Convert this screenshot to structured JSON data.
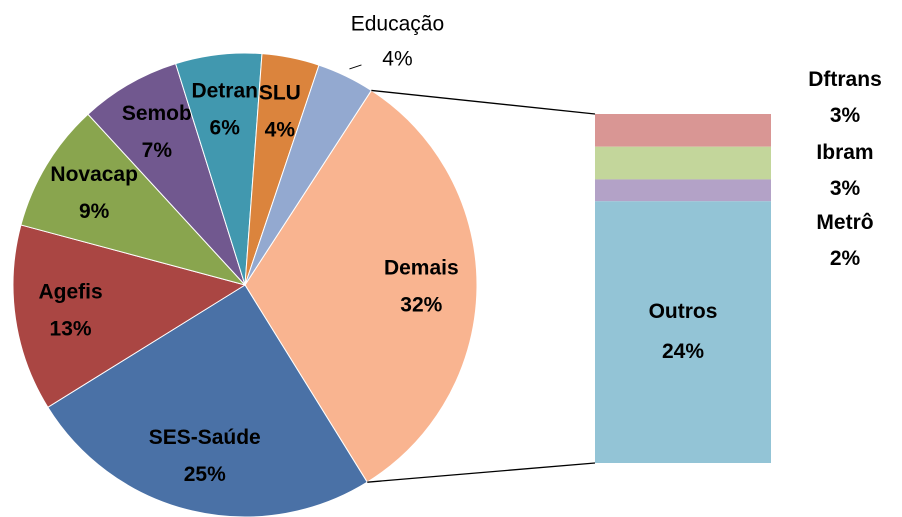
{
  "chart_data": [
    {
      "type": "pie",
      "categories": [
        "Demais",
        "SES-Saúde",
        "Agefis",
        "Novacap",
        "Semob",
        "Detran",
        "SLU",
        "Educação"
      ],
      "values": [
        32,
        25,
        13,
        9,
        7,
        6,
        4,
        4
      ],
      "value_labels": [
        "32%",
        "25%",
        "13%",
        "9%",
        "7%",
        "6%",
        "4%",
        "4%"
      ],
      "colors": [
        "#f9b490",
        "#4a71a6",
        "#aa4643",
        "#89a54e",
        "#71588f",
        "#4198af",
        "#db843d",
        "#93a9d0"
      ]
    },
    {
      "type": "bar",
      "categories": [
        "Dftrans",
        "Ibram",
        "Metrô",
        "Outros"
      ],
      "values": [
        3,
        3,
        2,
        24
      ],
      "value_labels": [
        "3%",
        "3%",
        "2%",
        "24%"
      ],
      "colors": [
        "#d99694",
        "#c3d69b",
        "#b3a2c7",
        "#93c4d6"
      ]
    }
  ]
}
